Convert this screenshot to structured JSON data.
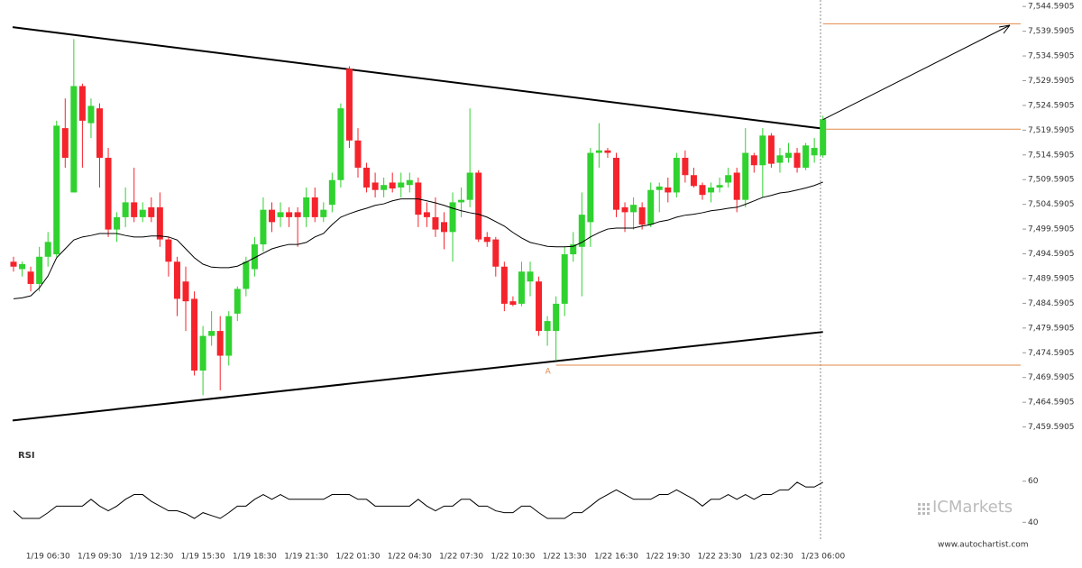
{
  "chart_data": {
    "type": "candlestick",
    "up_color": "#2fd22f",
    "down_color": "#f5232b",
    "ylim": [
      7456.6,
      7545.9
    ],
    "yticks": [
      {
        "value": 7459.5905,
        "label": "7,459.5905"
      },
      {
        "value": 7464.5905,
        "label": "7,464.5905"
      },
      {
        "value": 7469.5905,
        "label": "7,469.5905"
      },
      {
        "value": 7474.5905,
        "label": "7,474.5905"
      },
      {
        "value": 7479.5905,
        "label": "7,479.5905"
      },
      {
        "value": 7484.5905,
        "label": "7,484.5905"
      },
      {
        "value": 7489.5905,
        "label": "7,489.5905"
      },
      {
        "value": 7494.5905,
        "label": "7,494.5905"
      },
      {
        "value": 7499.5905,
        "label": "7,499.5905"
      },
      {
        "value": 7504.5905,
        "label": "7,504.5905"
      },
      {
        "value": 7509.5905,
        "label": "7,509.5905"
      },
      {
        "value": 7514.5905,
        "label": "7,514.5905"
      },
      {
        "value": 7519.5905,
        "label": "7,519.5905"
      },
      {
        "value": 7524.5905,
        "label": "7,524.5905"
      },
      {
        "value": 7529.5905,
        "label": "7,529.5905"
      },
      {
        "value": 7534.5905,
        "label": "7,534.5905"
      },
      {
        "value": 7539.5905,
        "label": "7,539.5905"
      },
      {
        "value": 7544.5905,
        "label": "7,544.5905"
      }
    ],
    "categories": [
      null,
      null,
      null,
      null,
      "1/19 06:30",
      null,
      null,
      null,
      null,
      null,
      "1/19 09:30",
      null,
      null,
      null,
      null,
      null,
      "1/19 12:30",
      null,
      null,
      null,
      null,
      null,
      "1/19 15:30",
      null,
      null,
      null,
      null,
      null,
      "1/19 18:30",
      null,
      null,
      null,
      null,
      null,
      "1/19 21:30",
      null,
      null,
      null,
      null,
      null,
      "1/22 01:30",
      null,
      null,
      null,
      null,
      null,
      "1/22 04:30",
      null,
      null,
      null,
      null,
      null,
      "1/22 07:30",
      null,
      null,
      null,
      null,
      null,
      "1/22 10:30",
      null,
      null,
      null,
      null,
      null,
      "1/22 13:30",
      null,
      null,
      null,
      null,
      null,
      "1/22 16:30",
      null,
      null,
      null,
      null,
      null,
      "1/22 19:30",
      null,
      null,
      null,
      null,
      null,
      "1/22 23:30",
      null,
      null,
      null,
      null,
      null,
      "1/23 02:30",
      null,
      null,
      null,
      null,
      null,
      "1/23 06:00"
    ],
    "open": [
      7493,
      7491.5,
      7491,
      7488.5,
      7494,
      7494.5,
      7520,
      7507,
      7528.5,
      7521,
      7524,
      7514,
      7499.5,
      7502,
      7505,
      7502,
      7504,
      7504,
      7497.5,
      7493,
      7489,
      7485.5,
      7471,
      7478,
      7479,
      7474,
      7482.5,
      7487.5,
      7491.5,
      7496.5,
      7503.5,
      7502,
      7503,
      7503,
      7502,
      7506,
      7502,
      7504.5,
      7509.5,
      7532,
      7517.5,
      7512,
      7509,
      7507.5,
      7509,
      7508,
      7508.5,
      7509,
      7503,
      7502,
      7501,
      7499,
      7505,
      7505.5,
      7511,
      7498,
      7497.5,
      7492,
      7485,
      7484.5,
      7489,
      7489,
      7479,
      7479,
      7484.5,
      7494.5,
      7496,
      7501,
      7515,
      7515.5,
      7514,
      7504,
      7503,
      7504,
      7500.5,
      7507.5,
      7508,
      7507,
      7514,
      7510.5,
      7508.5,
      7507,
      7508,
      7509,
      7511,
      7505.5,
      7514.5,
      7512.5,
      7518.5,
      7513,
      7514,
      7515,
      7512,
      7514.5,
      7514.5
    ],
    "high": [
      7494,
      7493,
      7492,
      7496,
      7499,
      7521.5,
      7526,
      7538,
      7529,
      7526,
      7525,
      7516,
      7503,
      7508,
      7512,
      7505,
      7506,
      7507,
      7498,
      7494,
      7492,
      7487,
      7480,
      7483,
      7482,
      7483,
      7488,
      7494,
      7498,
      7506,
      7505,
      7505,
      7504,
      7504,
      7508,
      7508,
      7505,
      7511,
      7525,
      7532.5,
      7520,
      7513,
      7511,
      7510,
      7511,
      7511,
      7511,
      7510,
      7505,
      7506,
      7503,
      7507,
      7508,
      7524,
      7511.5,
      7499,
      7498,
      7493,
      7486,
      7493,
      7493,
      7490,
      7482,
      7486,
      7496,
      7499,
      7507,
      7516,
      7521,
      7516,
      7515,
      7505,
      7506,
      7505,
      7509,
      7509,
      7510,
      7515,
      7515.5,
      7512,
      7509,
      7509,
      7510,
      7512,
      7512,
      7520,
      7515,
      7520,
      7519,
      7516,
      7517,
      7516,
      7517,
      7518,
      7522.5
    ],
    "low": [
      7491,
      7490,
      7487,
      7487,
      7492,
      7494,
      7512,
      7507,
      7512,
      7518,
      7508,
      7498,
      7497,
      7500,
      7501,
      7501,
      7501,
      7496,
      7490,
      7482,
      7479,
      7470,
      7466,
      7476,
      7467,
      7472,
      7481,
      7486,
      7490,
      7495,
      7499,
      7500,
      7500,
      7496,
      7500,
      7501,
      7501,
      7503,
      7508,
      7516,
      7510,
      7507,
      7506,
      7506,
      7507,
      7506,
      7507,
      7500,
      7500,
      7498,
      7495.5,
      7493,
      7502,
      7504,
      7497,
      7496,
      7490,
      7483,
      7484,
      7484,
      7486,
      7478,
      7476,
      7473,
      7482,
      7493,
      7486,
      7496,
      7512,
      7514,
      7502,
      7499,
      7499.5,
      7499.5,
      7500,
      7503,
      7505,
      7506,
      7509,
      7508,
      7505.5,
      7505,
      7507,
      7508,
      7503,
      7504,
      7511,
      7506,
      7512,
      7511,
      7513,
      7511,
      7511.5,
      7513,
      7514
    ],
    "close": [
      7492,
      7492.5,
      7488.5,
      7494,
      7497,
      7520.5,
      7514,
      7528.5,
      7521.5,
      7524.5,
      7514,
      7499.5,
      7502,
      7505,
      7502,
      7503.5,
      7502,
      7497.5,
      7493,
      7485.5,
      7485,
      7471,
      7478,
      7479,
      7474,
      7482,
      7487.5,
      7493,
      7496.5,
      7503.5,
      7501,
      7503,
      7502,
      7502,
      7506,
      7502,
      7503.5,
      7509.5,
      7524,
      7517.5,
      7512,
      7508,
      7507.5,
      7508.5,
      7507.8,
      7509,
      7509.5,
      7502.5,
      7502,
      7499.5,
      7499,
      7505,
      7505.5,
      7511,
      7497.5,
      7497,
      7492,
      7484.5,
      7484.3,
      7491,
      7491,
      7479,
      7481,
      7484.5,
      7494.5,
      7496.5,
      7502.5,
      7515,
      7515.5,
      7515,
      7503.5,
      7503,
      7504.5,
      7500.5,
      7507.5,
      7508.2,
      7507,
      7514,
      7510.5,
      7508.3,
      7506.5,
      7508,
      7508.5,
      7510.5,
      7505.5,
      7515,
      7512.5,
      7518.5,
      7512.8,
      7514.5,
      7515,
      7512,
      7516.5,
      7516,
      7521.8
    ],
    "moving_average": {
      "color": "#000000",
      "values": [
        7485.5,
        7485.7,
        7486.1,
        7487.7,
        7490.1,
        7493.8,
        7495.6,
        7497.4,
        7498.0,
        7498.3,
        7498.7,
        7498.7,
        7498.7,
        7498.3,
        7498.0,
        7498.0,
        7498.2,
        7498.2,
        7498.0,
        7497.4,
        7495.6,
        7493.8,
        7492.5,
        7491.9,
        7491.8,
        7491.8,
        7492.1,
        7492.9,
        7493.8,
        7494.7,
        7495.6,
        7496.1,
        7496.5,
        7496.5,
        7496.9,
        7498.0,
        7498.7,
        7500.5,
        7502.0,
        7502.7,
        7503.3,
        7503.8,
        7504.4,
        7504.7,
        7505.3,
        7505.7,
        7505.7,
        7505.7,
        7505.3,
        7504.9,
        7504.4,
        7503.8,
        7503.3,
        7502.9,
        7502.6,
        7502.0,
        7501.1,
        7500.2,
        7498.9,
        7497.8,
        7496.9,
        7496.5,
        7496.1,
        7496.0,
        7496.0,
        7496.1,
        7496.9,
        7498.0,
        7498.9,
        7499.6,
        7499.8,
        7499.8,
        7499.8,
        7500.2,
        7500.5,
        7501.1,
        7501.4,
        7502.0,
        7502.4,
        7502.6,
        7502.9,
        7503.3,
        7503.5,
        7503.8,
        7504.0,
        7504.6,
        7505.3,
        7506.0,
        7506.4,
        7506.9,
        7507.1,
        7507.5,
        7507.9,
        7508.4,
        7509.1
      ]
    },
    "trendlines": [
      {
        "start": 7540.4,
        "end": 7519.9
      },
      {
        "start": 7460.9,
        "end": 7478.8
      }
    ],
    "levels": [
      7541.1,
      7519.8,
      7472.1
    ],
    "annotation": "A",
    "rsi": {
      "title": "RSI",
      "color": "#000000",
      "ylim": [
        31.8,
        71.3
      ],
      "yticks": [
        40,
        60
      ],
      "values": [
        45.6,
        41.9,
        41.9,
        41.9,
        44.7,
        47.9,
        47.9,
        47.9,
        47.9,
        51.2,
        47.9,
        45.6,
        47.9,
        51.2,
        53.5,
        53.5,
        50.2,
        47.9,
        45.6,
        45.6,
        44.2,
        41.9,
        44.7,
        43.3,
        41.9,
        44.7,
        47.9,
        47.9,
        51.2,
        53.5,
        51.2,
        53.5,
        51.2,
        51.2,
        51.2,
        51.2,
        51.2,
        53.5,
        53.5,
        53.5,
        51.2,
        51.2,
        47.9,
        47.9,
        47.9,
        47.9,
        47.9,
        51.2,
        47.9,
        45.6,
        47.9,
        47.9,
        51.2,
        51.2,
        47.9,
        47.9,
        45.6,
        44.7,
        44.7,
        47.9,
        47.9,
        44.7,
        41.9,
        41.9,
        41.9,
        44.7,
        44.7,
        47.9,
        51.2,
        53.5,
        55.8,
        53.5,
        51.2,
        51.2,
        51.2,
        53.5,
        53.5,
        55.8,
        53.5,
        51.2,
        47.9,
        51.2,
        51.2,
        53.5,
        51.2,
        53.5,
        51.2,
        53.5,
        53.5,
        55.8,
        55.8,
        59.5,
        57.2,
        57.2,
        59.5
      ]
    },
    "logo": "ICMarkets",
    "source": "www.autochartist.com"
  }
}
